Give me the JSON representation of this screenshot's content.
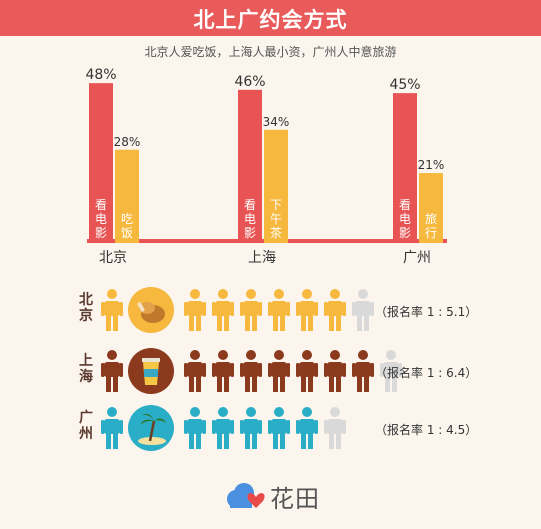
{
  "title": "北上广约会方式",
  "subtitle": "北京人爱吃饭，上海人最小资，广州人中意旅游",
  "colors": {
    "red": "#e85454",
    "yellow": "#f6b83d",
    "brown": "#8b3a1e",
    "teal": "#2aaec8",
    "gray": "#d9d9d9",
    "title_bg": "#e95a5a"
  },
  "chart_data": {
    "type": "bar",
    "categories": [
      "北京",
      "上海",
      "广州"
    ],
    "series": [
      {
        "values": [
          48,
          46,
          45
        ],
        "labels": [
          "看电影",
          "看电影",
          "看电影"
        ]
      },
      {
        "values": [
          28,
          34,
          21
        ],
        "labels": [
          "吃饭",
          "下午茶",
          "旅行"
        ]
      }
    ],
    "value_labels": [
      [
        "48%",
        "28%"
      ],
      [
        "46%",
        "34%"
      ],
      [
        "45%",
        "21%"
      ]
    ]
  },
  "ratio_rows": [
    {
      "city": "北京",
      "color": "yellow",
      "icon": "food-icon",
      "filled": 6,
      "gray": 1,
      "ratio_text": "（报名率 1 : 5.1）"
    },
    {
      "city": "上海",
      "color": "brown",
      "icon": "coffee-icon",
      "filled": 7,
      "gray": 1,
      "ratio_text": "（报名率 1 : 6.4）"
    },
    {
      "city": "广州",
      "color": "teal",
      "icon": "palm-beach-icon",
      "filled": 5,
      "gray": 1,
      "ratio_text": "（报名率 1 : 4.5）"
    }
  ],
  "logo": {
    "text": "花田"
  }
}
